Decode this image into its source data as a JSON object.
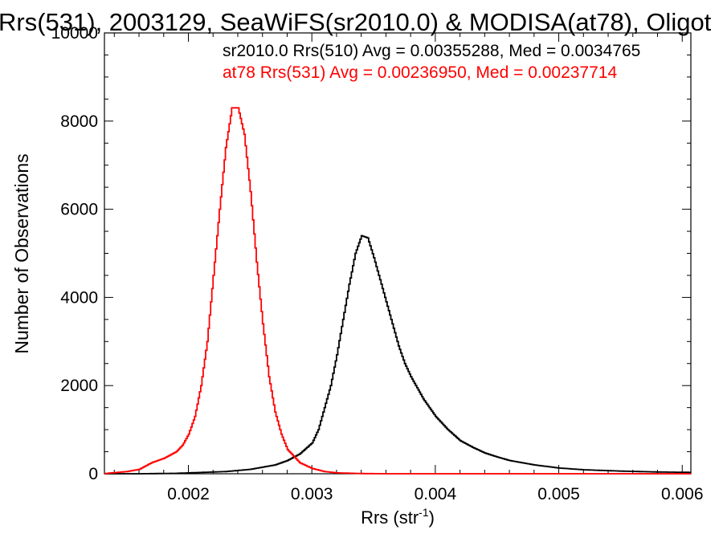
{
  "chart_data": {
    "type": "line",
    "title": "Rrs(531), 2003129, SeaWiFS(sr2010.0) & MODISA(at78), Oligot",
    "xlabel": "Rrs (str",
    "xlabel_sup": "-1",
    "xlabel_close": ")",
    "ylabel": "Number of Observations",
    "xlim": [
      0.00132,
      0.00607
    ],
    "ylim": [
      0,
      10000
    ],
    "xticks": [
      {
        "value": 0.002,
        "label": "0.002"
      },
      {
        "value": 0.003,
        "label": "0.003"
      },
      {
        "value": 0.004,
        "label": "0.004"
      },
      {
        "value": 0.005,
        "label": "0.005"
      },
      {
        "value": 0.006,
        "label": "0.006"
      }
    ],
    "yticks": [
      {
        "value": 0,
        "label": "0"
      },
      {
        "value": 2000,
        "label": "2000"
      },
      {
        "value": 4000,
        "label": "4000"
      },
      {
        "value": 6000,
        "label": "6000"
      },
      {
        "value": 8000,
        "label": "8000"
      },
      {
        "value": 10000,
        "label": "10000"
      }
    ],
    "grid": false,
    "series": [
      {
        "name": "sr2010.0 Rrs(510) Avg = 0.00355288, Med = 0.0034765",
        "color": "#000000",
        "x": [
          0.0013,
          0.0016,
          0.0019,
          0.0021,
          0.0023,
          0.0025,
          0.0026,
          0.0027,
          0.0028,
          0.0029,
          0.003,
          0.00305,
          0.0031,
          0.00315,
          0.0032,
          0.00325,
          0.0033,
          0.00335,
          0.0034,
          0.00345,
          0.0035,
          0.00355,
          0.0036,
          0.00365,
          0.0037,
          0.00375,
          0.0038,
          0.0039,
          0.004,
          0.0041,
          0.0042,
          0.0043,
          0.0044,
          0.0045,
          0.0046,
          0.0048,
          0.005,
          0.0052,
          0.0055,
          0.0058,
          0.0061
        ],
        "values": [
          0,
          0,
          10,
          30,
          50,
          100,
          150,
          200,
          300,
          450,
          700,
          1000,
          1500,
          2000,
          2700,
          3500,
          4300,
          5000,
          5400,
          5350,
          4900,
          4400,
          3900,
          3400,
          2900,
          2500,
          2200,
          1700,
          1300,
          1000,
          750,
          600,
          470,
          380,
          300,
          200,
          130,
          90,
          60,
          40,
          30
        ]
      },
      {
        "name": "at78 Rrs(531) Avg = 0.00236950, Med = 0.00237714",
        "color": "#ff0000",
        "x": [
          0.0013,
          0.0015,
          0.0016,
          0.0017,
          0.0018,
          0.0019,
          0.00195,
          0.002,
          0.00205,
          0.0021,
          0.00215,
          0.0022,
          0.00225,
          0.0023,
          0.00235,
          0.0024,
          0.00245,
          0.0025,
          0.00255,
          0.0026,
          0.00265,
          0.0027,
          0.00275,
          0.0028,
          0.0029,
          0.003,
          0.0031,
          0.0032,
          0.0034,
          0.0036,
          0.0061
        ],
        "values": [
          0,
          50,
          100,
          250,
          350,
          500,
          650,
          900,
          1300,
          2000,
          3000,
          4500,
          6000,
          7400,
          8300,
          8300,
          7700,
          6400,
          4800,
          3400,
          2200,
          1400,
          900,
          550,
          250,
          120,
          50,
          20,
          5,
          0,
          0
        ]
      }
    ]
  }
}
